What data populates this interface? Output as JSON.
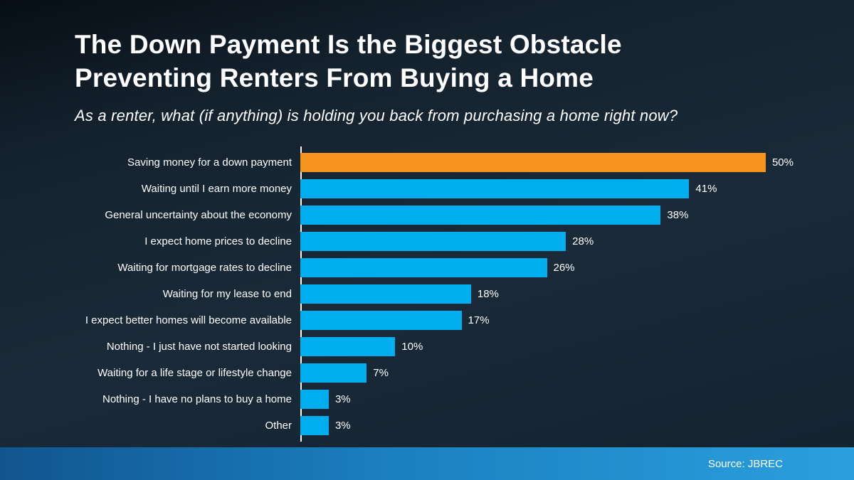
{
  "slide": {
    "title_line1": "The Down Payment Is the Biggest Obstacle",
    "title_line2": "Preventing Renters From Buying a Home",
    "subtitle": "As a renter, what (if anything) is holding you back from purchasing a home right now?",
    "source": "Source: JBREC"
  },
  "chart_data": {
    "type": "bar",
    "orientation": "horizontal",
    "title": "As a renter, what (if anything) is holding you back from purchasing a home right now?",
    "categories": [
      "Saving money for a down payment",
      "Waiting until I earn more money",
      "General uncertainty about the economy",
      "I expect home prices to decline",
      "Waiting for mortgage rates to decline",
      "Waiting for my lease to end",
      "I expect better homes will become available",
      "Nothing - I just have not started looking",
      "Waiting for a life stage or lifestyle change",
      "Nothing - I have no plans to buy a home",
      "Other"
    ],
    "values": [
      50,
      41,
      38,
      28,
      26,
      18,
      17,
      10,
      7,
      3,
      3
    ],
    "value_suffix": "%",
    "xlim": [
      0,
      52
    ],
    "highlight_index": 0,
    "legend": "none",
    "grid": false,
    "colors": {
      "highlight": "#F7941D",
      "default": "#00AEEF",
      "axis": "#FFFFFF",
      "background": "#16242F",
      "footer_start": "#11558F",
      "footer_end": "#2AA0DC"
    }
  }
}
